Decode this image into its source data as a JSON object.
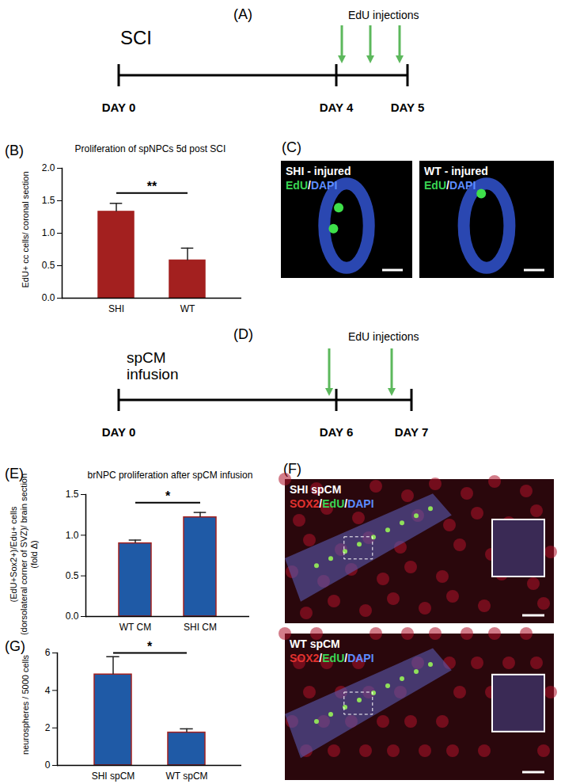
{
  "chart_data": [
    {
      "panel": "(B)",
      "type": "bar",
      "title": "Proliferation of spNPCs 5d post SCI",
      "y_label": [
        "EdU+ cc cells/ coronal section"
      ],
      "categories": [
        "SHI",
        "WT"
      ],
      "values": [
        1.33,
        0.58
      ],
      "errors": [
        0.13,
        0.19
      ],
      "color": "#a3201f",
      "ylim": [
        0,
        2
      ],
      "yticks": [
        {
          "value": 0,
          "label": "0.0"
        },
        0.5,
        {
          "value": 1,
          "label": "1.0"
        },
        1.5,
        {
          "value": 2,
          "label": "2.0"
        }
      ],
      "annotations": [
        "**"
      ]
    },
    {
      "panel": "(E)",
      "type": "bar",
      "title": "brNPC proliferation after spCM infusion",
      "y_label": [
        "(EdU+Sox2+)/Edu+ cells",
        "(dorsolateral corner of SVZ)/ brain section",
        "(fold Δ)"
      ],
      "categories": [
        "WT CM",
        "SHI CM"
      ],
      "values": [
        0.9,
        1.22
      ],
      "errors": [
        0.04,
        0.06
      ],
      "color": "#1f5aa6",
      "ylim": [
        0,
        1.5
      ],
      "yticks": [
        {
          "value": 0,
          "label": "0.0"
        },
        0.5,
        {
          "value": 1,
          "label": "1.0"
        },
        1.5
      ],
      "annotations": [
        "*"
      ]
    },
    {
      "panel": "(G)",
      "type": "bar",
      "y_label": [
        "neurospheres / 5000 cells"
      ],
      "categories": [
        "SHI spCM",
        "WT spCM"
      ],
      "values": [
        4.85,
        1.75
      ],
      "errors": [
        0.95,
        0.2
      ],
      "color": "#1f5aa6",
      "ylim": [
        0,
        6
      ],
      "yticks": [
        0,
        2,
        4,
        6
      ],
      "annotations": [
        "*"
      ]
    }
  ],
  "timelines": [
    {
      "panel": "(A)",
      "treatment": [
        "SCI"
      ],
      "days": [
        "DAY 0",
        "DAY 4",
        "DAY 5"
      ],
      "injection_label": "EdU injections"
    },
    {
      "panel": "(D)",
      "treatment": [
        "spCM",
        "infusion"
      ],
      "days": [
        "DAY 0",
        "DAY 6",
        "DAY 7"
      ],
      "injection_label": "EdU injections"
    }
  ],
  "micrographs": [
    {
      "panel": "(C)",
      "images": [
        {
          "title": "SHI - injured",
          "stain": [
            {
              "text": "EdU",
              "color": "#39d353"
            },
            {
              "text": "/",
              "color": "#ffffff"
            },
            {
              "text": "DAPI",
              "color": "#5b8cff"
            }
          ]
        },
        {
          "title": "WT - injured",
          "stain": [
            {
              "text": "EdU",
              "color": "#39d353"
            },
            {
              "text": "/",
              "color": "#ffffff"
            },
            {
              "text": "DAPI",
              "color": "#5b8cff"
            }
          ]
        }
      ]
    },
    {
      "panel": "(F)",
      "images": [
        {
          "title": "SHI spCM",
          "stain": [
            {
              "text": "SOX2",
              "color": "#e0322f"
            },
            {
              "text": "/",
              "color": "#ffffff"
            },
            {
              "text": "EdU",
              "color": "#39d353"
            },
            {
              "text": "/",
              "color": "#ffffff"
            },
            {
              "text": "DAPI",
              "color": "#5b8cff"
            }
          ]
        },
        {
          "title": "WT spCM",
          "stain": [
            {
              "text": "SOX2",
              "color": "#e0322f"
            },
            {
              "text": "/",
              "color": "#ffffff"
            },
            {
              "text": "EdU",
              "color": "#39d353"
            },
            {
              "text": "/",
              "color": "#ffffff"
            },
            {
              "text": "DAPI",
              "color": "#5b8cff"
            }
          ]
        }
      ]
    }
  ]
}
